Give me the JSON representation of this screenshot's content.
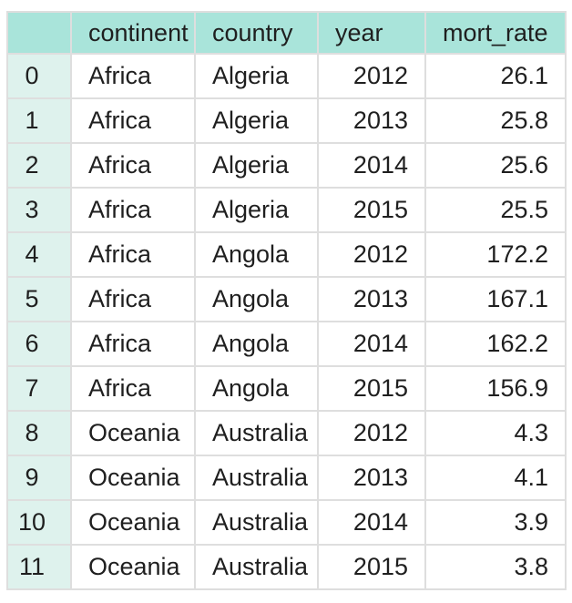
{
  "colors": {
    "header_bg": "#a9e4da",
    "index_bg": "#def2ed",
    "border": "#dedede",
    "text": "#1f1f1f",
    "page_bg": "#ffffff"
  },
  "chart_data": {
    "type": "table",
    "title": "",
    "index_header": "",
    "columns": [
      "continent",
      "country",
      "year",
      "mort_rate"
    ],
    "rows": [
      [
        "0",
        "Africa",
        "Algeria",
        "2012",
        "26.1"
      ],
      [
        "1",
        "Africa",
        "Algeria",
        "2013",
        "25.8"
      ],
      [
        "2",
        "Africa",
        "Algeria",
        "2014",
        "25.6"
      ],
      [
        "3",
        "Africa",
        "Algeria",
        "2015",
        "25.5"
      ],
      [
        "4",
        "Africa",
        "Angola",
        "2012",
        "172.2"
      ],
      [
        "5",
        "Africa",
        "Angola",
        "2013",
        "167.1"
      ],
      [
        "6",
        "Africa",
        "Angola",
        "2014",
        "162.2"
      ],
      [
        "7",
        "Africa",
        "Angola",
        "2015",
        "156.9"
      ],
      [
        "8",
        "Oceania",
        "Australia",
        "2012",
        "4.3"
      ],
      [
        "9",
        "Oceania",
        "Australia",
        "2013",
        "4.1"
      ],
      [
        "10",
        "Oceania",
        "Australia",
        "2014",
        "3.9"
      ],
      [
        "11",
        "Oceania",
        "Australia",
        "2015",
        "3.8"
      ]
    ]
  }
}
